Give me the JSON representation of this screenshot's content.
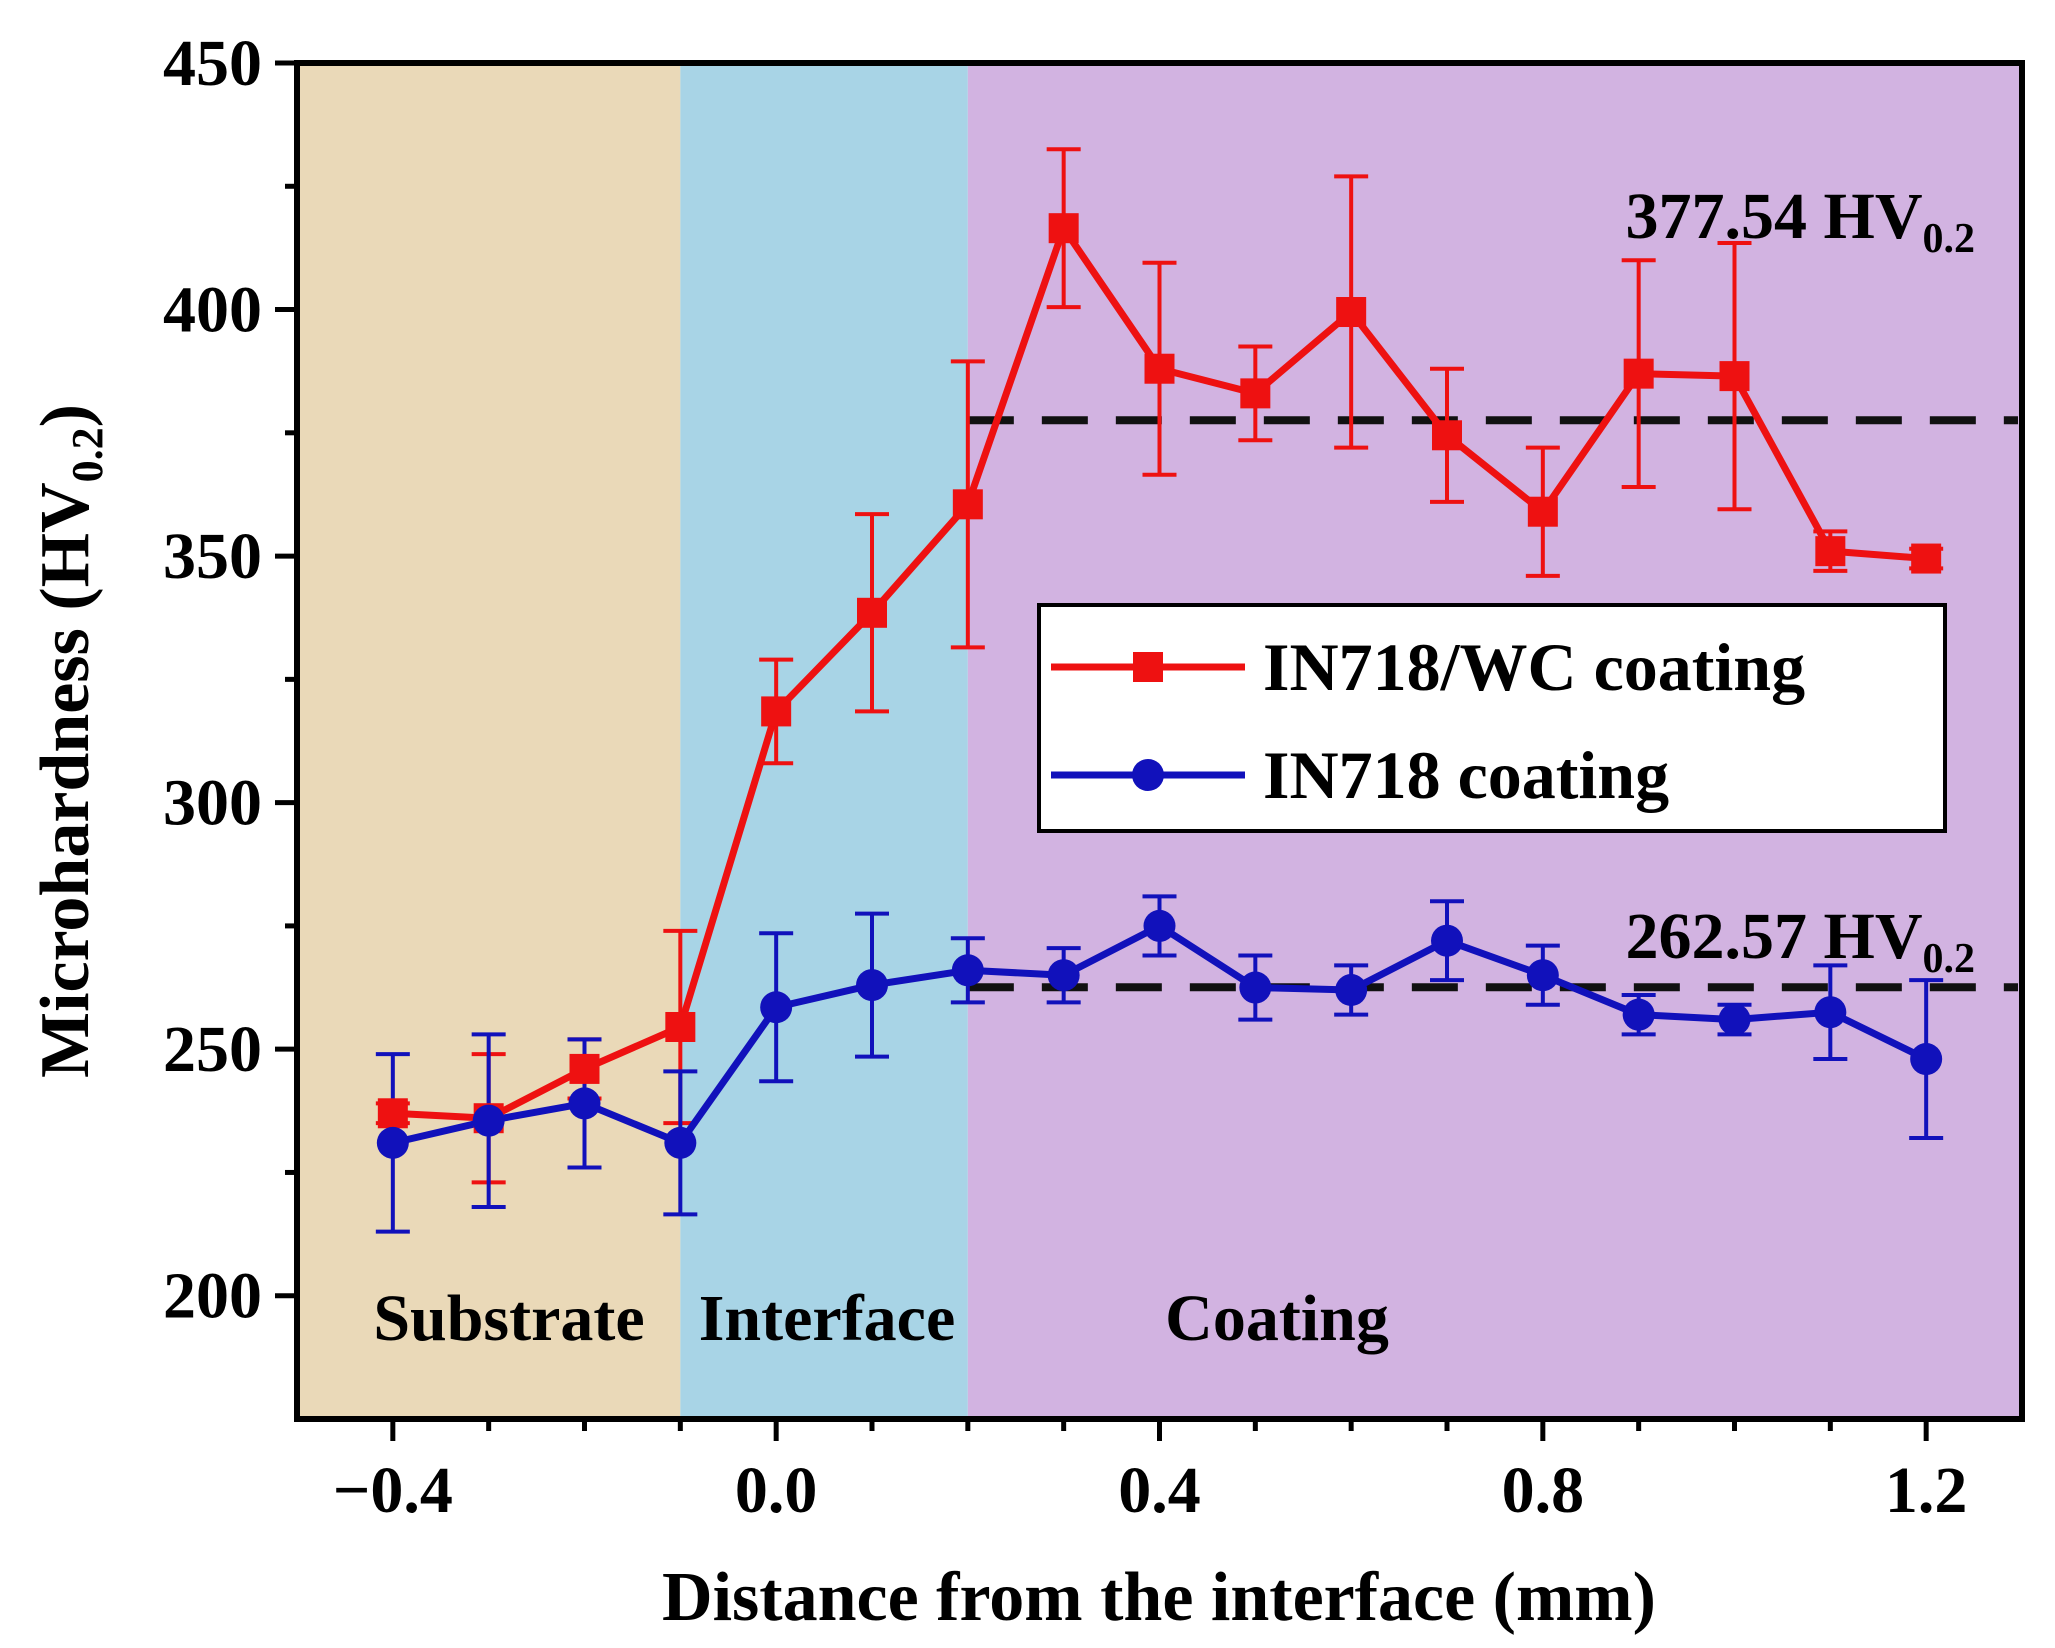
{
  "chart_data": {
    "type": "line",
    "title": "",
    "xlabel": "Distance from the interface (mm)",
    "ylabel": {
      "main": "Microhardness (HV",
      "sub": "0.2",
      "close": ")"
    },
    "xlim": [
      -0.5,
      1.3
    ],
    "ylim": [
      175,
      450
    ],
    "x_ticks": [
      -0.4,
      0.0,
      0.4,
      0.8,
      1.2
    ],
    "x_tick_labels": [
      "−0.4",
      "0.0",
      "0.4",
      "0.8",
      "1.2"
    ],
    "y_ticks": [
      200,
      250,
      300,
      350,
      400,
      450
    ],
    "y_tick_labels": [
      "200",
      "250",
      "300",
      "350",
      "400",
      "450"
    ],
    "regions": [
      {
        "label": "Substrate",
        "x0": -0.5,
        "x1": -0.1,
        "color": "#ead9b8"
      },
      {
        "label": "Interface",
        "x0": -0.1,
        "x1": 0.2,
        "color": "#a8d4e6"
      },
      {
        "label": "Coating",
        "x0": 0.2,
        "x1": 1.3,
        "color": "#d2b3e1"
      }
    ],
    "series": [
      {
        "name": "IN718/WC coating",
        "color": "#ee1111",
        "marker": "square",
        "x": [
          -0.4,
          -0.3,
          -0.2,
          -0.1,
          0.0,
          0.1,
          0.2,
          0.3,
          0.4,
          0.5,
          0.6,
          0.7,
          0.8,
          0.9,
          1.0,
          1.1,
          1.2
        ],
        "y": [
          237,
          236,
          246,
          254.5,
          318.5,
          338.5,
          360.5,
          416.5,
          388,
          383,
          399.5,
          374.5,
          359,
          387,
          386.5,
          351,
          349.5
        ],
        "err": [
          2,
          13,
          6,
          19.5,
          10.5,
          20,
          29,
          16,
          21.5,
          9.5,
          27.5,
          13.5,
          13,
          23,
          27,
          4,
          2
        ]
      },
      {
        "name": "IN718 coating",
        "color": "#1111bb",
        "marker": "circle",
        "x": [
          -0.4,
          -0.3,
          -0.2,
          -0.1,
          0.0,
          0.1,
          0.2,
          0.3,
          0.4,
          0.5,
          0.6,
          0.7,
          0.8,
          0.9,
          1.0,
          1.1,
          1.2
        ],
        "y": [
          231,
          235.5,
          239,
          231,
          258.5,
          263,
          266,
          265,
          275,
          262.5,
          262,
          272,
          265,
          257,
          256,
          257.5,
          248
        ],
        "err": [
          18,
          17.5,
          13,
          14.5,
          15,
          14.5,
          6.5,
          5.5,
          6,
          6.5,
          5,
          8,
          6,
          4,
          3,
          9.5,
          16
        ]
      }
    ],
    "reference_lines": [
      {
        "series": "IN718/WC coating",
        "y": 377.54,
        "x0": 0.2,
        "x1": 1.3,
        "label": "377.54 HV",
        "label_sub": "0.2"
      },
      {
        "series": "IN718 coating",
        "y": 262.57,
        "x0": 0.2,
        "x1": 1.3,
        "label": "262.57 HV",
        "label_sub": "0.2"
      }
    ],
    "legend_position": "center-right",
    "grid": false
  }
}
